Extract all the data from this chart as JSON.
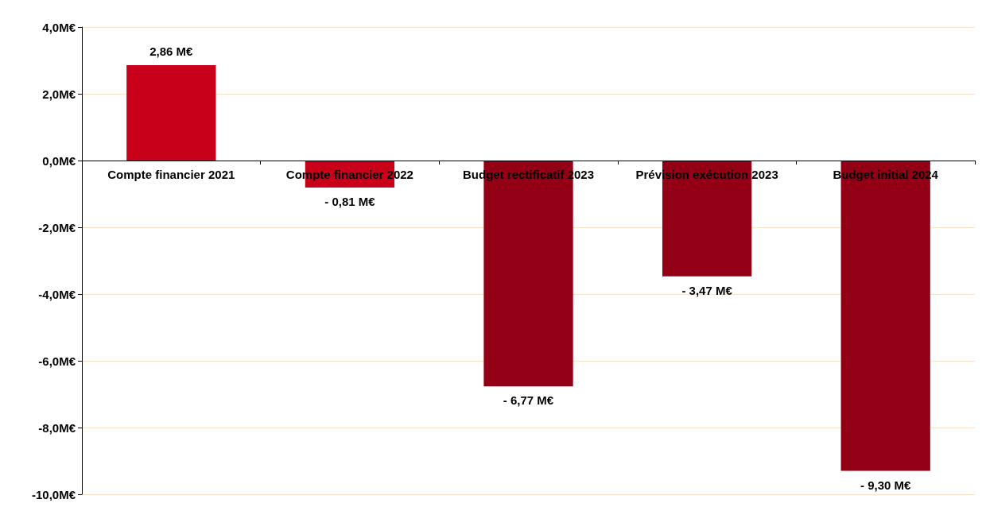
{
  "chart_data": {
    "type": "bar",
    "categories": [
      "Compte financier 2021",
      "Compte financier 2022",
      "Budget rectificatif 2023",
      "Prévision exécution 2023",
      "Budget initial 2024"
    ],
    "values": [
      2.86,
      -0.81,
      -6.77,
      -3.47,
      -9.3
    ],
    "colors": [
      "#c8001a",
      "#c8001a",
      "#930016",
      "#930016",
      "#930016"
    ],
    "value_labels": [
      "2,86 M€",
      "- 0,81 M€",
      "- 6,77 M€",
      "- 3,47 M€",
      "- 9,30 M€"
    ],
    "ylim": [
      -10,
      4
    ],
    "yticks": [
      {
        "value": -10,
        "label": "-10,0M€"
      },
      {
        "value": -8,
        "label": "-8,0M€"
      },
      {
        "value": -6,
        "label": "-6,0M€"
      },
      {
        "value": -4,
        "label": "-4,0M€"
      },
      {
        "value": -2,
        "label": "-2,0M€"
      },
      {
        "value": 0,
        "label": "0,0M€"
      },
      {
        "value": 2,
        "label": "2,0M€"
      },
      {
        "value": 4,
        "label": "4,0M€"
      }
    ],
    "grid": "y"
  }
}
